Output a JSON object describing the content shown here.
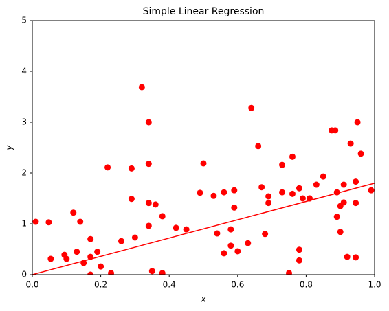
{
  "chart_data": {
    "type": "scatter",
    "title": "Simple Linear Regression",
    "x_label": "x",
    "y_label": "y",
    "xlim": [
      0,
      1
    ],
    "ylim": [
      0,
      5
    ],
    "xticks": [
      {
        "value": 0,
        "label": "0.0"
      },
      0.2,
      0.4,
      0.6,
      0.8,
      {
        "value": 1,
        "label": "1.0"
      }
    ],
    "yticks": [
      0,
      1,
      2,
      3,
      4,
      5
    ],
    "series": [
      {
        "type": "scatter",
        "color": "#ff0000",
        "x": [
          0.01,
          0.048,
          0.054,
          0.094,
          0.1,
          0.12,
          0.13,
          0.14,
          0.15,
          0.17,
          0.17,
          0.17,
          0.19,
          0.2,
          0.22,
          0.23,
          0.26,
          0.29,
          0.29,
          0.3,
          0.32,
          0.34,
          0.34,
          0.34,
          0.34,
          0.35,
          0.36,
          0.38,
          0.38,
          0.42,
          0.45,
          0.49,
          0.5,
          0.53,
          0.54,
          0.56,
          0.56,
          0.58,
          0.58,
          0.59,
          0.59,
          0.6,
          0.63,
          0.64,
          0.66,
          0.67,
          0.68,
          0.69,
          0.69,
          0.73,
          0.73,
          0.75,
          0.76,
          0.76,
          0.78,
          0.78,
          0.78,
          0.79,
          0.81,
          0.81,
          0.83,
          0.85,
          0.875,
          0.89,
          0.89,
          0.885,
          0.9,
          0.9,
          0.91,
          0.91,
          0.92,
          0.93,
          0.945,
          0.945,
          0.945,
          0.95,
          0.96,
          0.99
        ],
        "y": [
          1.04,
          1.03,
          0.31,
          0.39,
          0.31,
          1.22,
          0.45,
          1.04,
          0.23,
          0.7,
          0.0,
          0.35,
          0.45,
          0.16,
          2.11,
          0.03,
          0.66,
          2.09,
          1.49,
          0.73,
          3.69,
          2.18,
          1.41,
          3.0,
          0.96,
          0.07,
          1.38,
          1.15,
          0.03,
          0.92,
          0.89,
          1.61,
          2.19,
          1.55,
          0.81,
          0.42,
          1.62,
          0.89,
          0.57,
          1.32,
          1.66,
          0.46,
          0.62,
          3.28,
          2.53,
          1.72,
          0.8,
          1.41,
          1.54,
          2.16,
          1.62,
          0.03,
          2.32,
          1.59,
          1.7,
          0.28,
          0.49,
          1.5,
          1.5,
          1.5,
          1.77,
          1.93,
          2.84,
          1.62,
          1.14,
          2.84,
          0.84,
          1.35,
          1.42,
          1.77,
          0.35,
          2.58,
          1.41,
          0.34,
          1.83,
          3.0,
          2.38,
          1.66
        ]
      },
      {
        "type": "line",
        "color": "#ff0000",
        "x": [
          0,
          1
        ],
        "y": [
          0,
          1.8
        ]
      }
    ]
  }
}
